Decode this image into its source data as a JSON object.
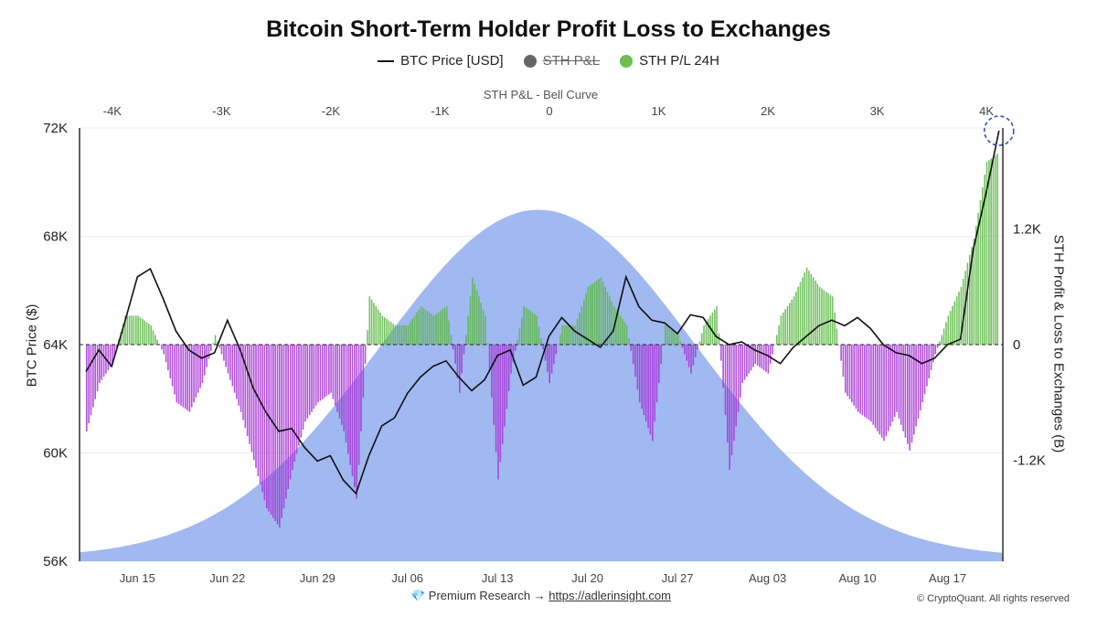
{
  "title": "Bitcoin Short-Term Holder Profit Loss to Exchanges",
  "legend": [
    {
      "label": "BTC Price [USD]",
      "type": "line",
      "color": "#111111",
      "hidden": false
    },
    {
      "label": "STH P&L",
      "type": "dot",
      "color": "#666666",
      "hidden": true
    },
    {
      "label": "STH P/L 24H",
      "type": "dot",
      "color": "#6cbf4e",
      "hidden": false
    }
  ],
  "footer": {
    "prefix": "💎 Premium Research →",
    "link": "https://adlerinsight.com"
  },
  "copyright": "© CryptoQuant. All rights reserved",
  "colors": {
    "price": "#111111",
    "profit": "#5cb845",
    "loss": "#a632d6",
    "bell": "#8fadee",
    "zero": "#222222"
  },
  "chart_data": {
    "type": "line",
    "top_axis": {
      "label": "STH P&L - Bell Curve",
      "ticks": [
        "-4K",
        "-3K",
        "-2K",
        "-1K",
        "0",
        "1K",
        "2K",
        "3K",
        "4K"
      ],
      "range": [
        -4300,
        4150
      ]
    },
    "x_axis": {
      "ticks": [
        "Jun 15",
        "Jun 22",
        "Jun 29",
        "Jul 06",
        "Jul 13",
        "Jul 20",
        "Jul 27",
        "Aug 03",
        "Aug 10",
        "Aug 17"
      ],
      "range": [
        "2025-06-11",
        "2025-08-21"
      ]
    },
    "y_left": {
      "label": "BTC Price ($)",
      "ticks": [
        "56K",
        "60K",
        "64K",
        "68K",
        "72K"
      ],
      "range": [
        56000,
        72000
      ]
    },
    "y_right": {
      "label": "STH Profit & Loss to Exchanges (B)",
      "ticks": [
        "1.2K",
        "0",
        "-1.2K"
      ],
      "range": [
        -2250,
        2250
      ]
    },
    "bell_curve": {
      "mean": -100,
      "peak": 1400
    },
    "series": [
      {
        "name": "BTC Price [USD]",
        "points": [
          [
            "2025-06-11",
            63000
          ],
          [
            "2025-06-12",
            63800
          ],
          [
            "2025-06-13",
            63200
          ],
          [
            "2025-06-14",
            64800
          ],
          [
            "2025-06-15",
            66500
          ],
          [
            "2025-06-16",
            66800
          ],
          [
            "2025-06-17",
            65700
          ],
          [
            "2025-06-18",
            64500
          ],
          [
            "2025-06-19",
            63800
          ],
          [
            "2025-06-20",
            63500
          ],
          [
            "2025-06-21",
            63700
          ],
          [
            "2025-06-22",
            64900
          ],
          [
            "2025-06-23",
            63800
          ],
          [
            "2025-06-24",
            62400
          ],
          [
            "2025-06-25",
            61500
          ],
          [
            "2025-06-26",
            60800
          ],
          [
            "2025-06-27",
            60900
          ],
          [
            "2025-06-28",
            60200
          ],
          [
            "2025-06-29",
            59700
          ],
          [
            "2025-06-30",
            59900
          ],
          [
            "2025-07-01",
            59000
          ],
          [
            "2025-07-02",
            58500
          ],
          [
            "2025-07-03",
            59900
          ],
          [
            "2025-07-04",
            61000
          ],
          [
            "2025-07-05",
            61300
          ],
          [
            "2025-07-06",
            62200
          ],
          [
            "2025-07-07",
            62800
          ],
          [
            "2025-07-08",
            63200
          ],
          [
            "2025-07-09",
            63400
          ],
          [
            "2025-07-10",
            62800
          ],
          [
            "2025-07-11",
            62300
          ],
          [
            "2025-07-12",
            62700
          ],
          [
            "2025-07-13",
            63600
          ],
          [
            "2025-07-14",
            63800
          ],
          [
            "2025-07-15",
            62500
          ],
          [
            "2025-07-16",
            62800
          ],
          [
            "2025-07-17",
            64300
          ],
          [
            "2025-07-18",
            65000
          ],
          [
            "2025-07-19",
            64500
          ],
          [
            "2025-07-20",
            64200
          ],
          [
            "2025-07-21",
            63900
          ],
          [
            "2025-07-22",
            64500
          ],
          [
            "2025-07-23",
            66500
          ],
          [
            "2025-07-24",
            65400
          ],
          [
            "2025-07-25",
            64900
          ],
          [
            "2025-07-26",
            64800
          ],
          [
            "2025-07-27",
            64400
          ],
          [
            "2025-07-28",
            65100
          ],
          [
            "2025-07-29",
            65000
          ],
          [
            "2025-07-30",
            64300
          ],
          [
            "2025-07-31",
            64000
          ],
          [
            "2025-08-01",
            64100
          ],
          [
            "2025-08-02",
            63800
          ],
          [
            "2025-08-03",
            63600
          ],
          [
            "2025-08-04",
            63300
          ],
          [
            "2025-08-05",
            63900
          ],
          [
            "2025-08-06",
            64300
          ],
          [
            "2025-08-07",
            64700
          ],
          [
            "2025-08-08",
            64900
          ],
          [
            "2025-08-09",
            64700
          ],
          [
            "2025-08-10",
            65000
          ],
          [
            "2025-08-11",
            64600
          ],
          [
            "2025-08-12",
            64000
          ],
          [
            "2025-08-13",
            63700
          ],
          [
            "2025-08-14",
            63600
          ],
          [
            "2025-08-15",
            63300
          ],
          [
            "2025-08-16",
            63500
          ],
          [
            "2025-08-17",
            64000
          ],
          [
            "2025-08-18",
            64200
          ],
          [
            "2025-08-19",
            67500
          ],
          [
            "2025-08-20",
            69600
          ],
          [
            "2025-08-21",
            71900
          ]
        ]
      },
      {
        "name": "STH P/L 24H",
        "points": [
          [
            "2025-06-11",
            -900
          ],
          [
            "2025-06-12",
            -400
          ],
          [
            "2025-06-13",
            -200
          ],
          [
            "2025-06-14",
            300
          ],
          [
            "2025-06-15",
            300
          ],
          [
            "2025-06-16",
            200
          ],
          [
            "2025-06-17",
            -100
          ],
          [
            "2025-06-18",
            -600
          ],
          [
            "2025-06-19",
            -700
          ],
          [
            "2025-06-20",
            -400
          ],
          [
            "2025-06-21",
            100
          ],
          [
            "2025-06-22",
            -300
          ],
          [
            "2025-06-23",
            -700
          ],
          [
            "2025-06-24",
            -1200
          ],
          [
            "2025-06-25",
            -1700
          ],
          [
            "2025-06-26",
            -1900
          ],
          [
            "2025-06-27",
            -1300
          ],
          [
            "2025-06-28",
            -800
          ],
          [
            "2025-06-29",
            -600
          ],
          [
            "2025-06-30",
            -500
          ],
          [
            "2025-07-01",
            -900
          ],
          [
            "2025-07-02",
            -1600
          ],
          [
            "2025-07-03",
            500
          ],
          [
            "2025-07-04",
            300
          ],
          [
            "2025-07-05",
            200
          ],
          [
            "2025-07-06",
            200
          ],
          [
            "2025-07-07",
            400
          ],
          [
            "2025-07-08",
            300
          ],
          [
            "2025-07-09",
            400
          ],
          [
            "2025-07-10",
            -500
          ],
          [
            "2025-07-11",
            700
          ],
          [
            "2025-07-12",
            300
          ],
          [
            "2025-07-13",
            -1400
          ],
          [
            "2025-07-14",
            -300
          ],
          [
            "2025-07-15",
            400
          ],
          [
            "2025-07-16",
            300
          ],
          [
            "2025-07-17",
            -400
          ],
          [
            "2025-07-18",
            200
          ],
          [
            "2025-07-19",
            200
          ],
          [
            "2025-07-20",
            600
          ],
          [
            "2025-07-21",
            700
          ],
          [
            "2025-07-22",
            400
          ],
          [
            "2025-07-23",
            200
          ],
          [
            "2025-07-24",
            -600
          ],
          [
            "2025-07-25",
            -1000
          ],
          [
            "2025-07-26",
            200
          ],
          [
            "2025-07-27",
            100
          ],
          [
            "2025-07-28",
            -300
          ],
          [
            "2025-07-29",
            200
          ],
          [
            "2025-07-30",
            400
          ],
          [
            "2025-07-31",
            -1300
          ],
          [
            "2025-08-01",
            -400
          ],
          [
            "2025-08-02",
            -200
          ],
          [
            "2025-08-03",
            -300
          ],
          [
            "2025-08-04",
            300
          ],
          [
            "2025-08-05",
            500
          ],
          [
            "2025-08-06",
            800
          ],
          [
            "2025-08-07",
            600
          ],
          [
            "2025-08-08",
            500
          ],
          [
            "2025-08-09",
            -500
          ],
          [
            "2025-08-10",
            -700
          ],
          [
            "2025-08-11",
            -800
          ],
          [
            "2025-08-12",
            -1000
          ],
          [
            "2025-08-13",
            -700
          ],
          [
            "2025-08-14",
            -1100
          ],
          [
            "2025-08-15",
            -600
          ],
          [
            "2025-08-16",
            -100
          ],
          [
            "2025-08-17",
            300
          ],
          [
            "2025-08-18",
            600
          ],
          [
            "2025-08-19",
            1100
          ],
          [
            "2025-08-20",
            1900
          ],
          [
            "2025-08-21",
            2000
          ]
        ]
      }
    ],
    "highlight_marker": {
      "date": "2025-08-21",
      "value": 71900,
      "style": "dashed-circle"
    },
    "grid": true,
    "legend_position": "top-center"
  }
}
